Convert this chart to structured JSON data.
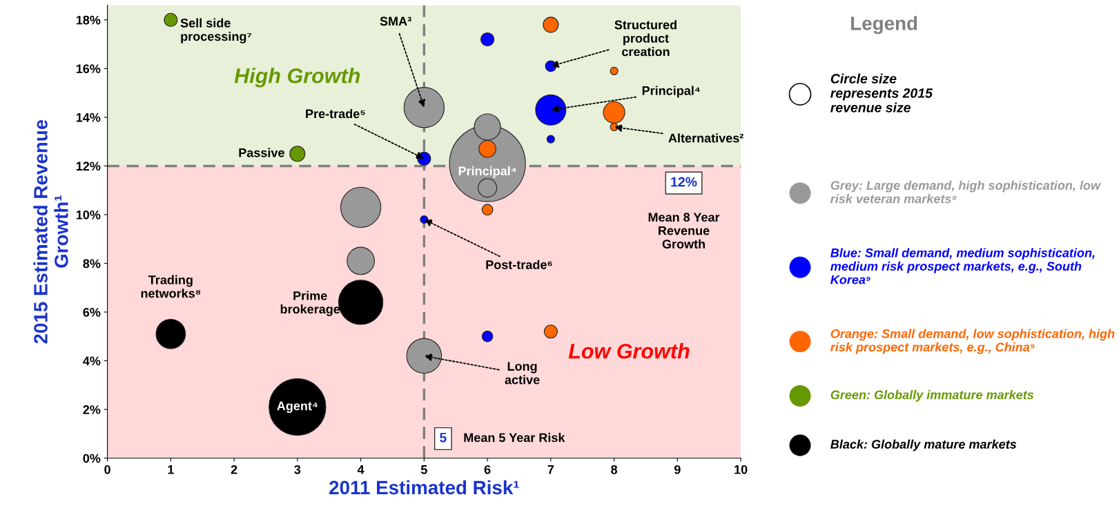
{
  "chart_data": {
    "type": "bubble",
    "xlabel": "2011 Estimated Risk¹",
    "ylabel": "2015 Estimated Revenue\nGrowth¹",
    "xlim": [
      0,
      10
    ],
    "xticks": [
      0,
      1,
      2,
      3,
      4,
      5,
      6,
      7,
      8,
      9,
      10
    ],
    "ylim": [
      0,
      18.6
    ],
    "yticks": [
      {
        "value": 0,
        "label": "0%"
      },
      {
        "value": 2,
        "label": "2%"
      },
      {
        "value": 4,
        "label": "4%"
      },
      {
        "value": 6,
        "label": "6%"
      },
      {
        "value": 8,
        "label": "8%"
      },
      {
        "value": 10,
        "label": "10%"
      },
      {
        "value": 12,
        "label": "12%"
      },
      {
        "value": 14,
        "label": "14%"
      },
      {
        "value": 16,
        "label": "16%"
      },
      {
        "value": 18,
        "label": "18%"
      }
    ],
    "legend": "right",
    "legend_title": "Legend",
    "series": [
      {
        "name": "Grey: Large demand, high sophistication, low risk veteran markets⁹",
        "color": "#999999",
        "x": [
          6,
          5,
          4,
          5,
          4,
          6,
          6
        ],
        "values": [
          12.1,
          14.4,
          10.3,
          4.2,
          8.1,
          13.6,
          11.1
        ],
        "sizes": [
          1,
          0.28,
          0.28,
          0.21,
          0.13,
          0.12,
          0.06
        ]
      },
      {
        "name": "Blue: Small demand, medium sophistication, medium risk prospect markets, e.g., South Korea⁹",
        "color": "#0000ff",
        "x": [
          6,
          7,
          7,
          7,
          5,
          5,
          6
        ],
        "values": [
          17.2,
          16.1,
          14.3,
          13.1,
          12.3,
          9.8,
          5.0
        ],
        "sizes": [
          0.03,
          0.02,
          0.16,
          0.01,
          0.03,
          0.01,
          0.02
        ]
      },
      {
        "name": "Orange: Small demand, low sophistication, high risk prospect markets, e.g., China⁹",
        "color": "#ff6600",
        "x": [
          7,
          8,
          8,
          8,
          6,
          6,
          7
        ],
        "values": [
          17.8,
          15.9,
          14.2,
          13.6,
          12.7,
          10.2,
          5.2
        ],
        "sizes": [
          0.04,
          0.01,
          0.08,
          0.01,
          0.05,
          0.02,
          0.03
        ]
      },
      {
        "name": "Green: Globally immature markets",
        "color": "#669900",
        "x": [
          1,
          3
        ],
        "values": [
          18.0,
          12.5
        ],
        "sizes": [
          0.03,
          0.04
        ]
      },
      {
        "name": "Black: Globally mature markets",
        "color": "#000000",
        "x": [
          3,
          4,
          1
        ],
        "values": [
          2.1,
          6.4,
          5.1
        ],
        "sizes": [
          0.56,
          0.34,
          0.15
        ]
      }
    ],
    "bands": [
      {
        "axis": "y",
        "from": 12,
        "to": 18.6,
        "label": "High Growth",
        "color": "#669900"
      },
      {
        "axis": "y",
        "from": 0,
        "to": 12,
        "label": "Low Growth",
        "color": "#ff0000"
      }
    ],
    "ref_lines": [
      {
        "axis": "y",
        "value": 12,
        "label": "12%",
        "color": "#808080",
        "line_style": "dashed"
      },
      {
        "axis": "x",
        "value": 5,
        "label": "5",
        "color": "#808080",
        "line_style": "dashed"
      }
    ],
    "annotations": [
      {
        "text": "Sell side\nprocessing⁷",
        "x": 1,
        "y": 18.0
      },
      {
        "text": "SMA³",
        "x": 5,
        "y": 14.4
      },
      {
        "text": "Structured\nproduct\ncreation",
        "x": 7,
        "y": 16.1
      },
      {
        "text": "Principal⁴",
        "x": 7,
        "y": 14.3
      },
      {
        "text": "Alternatives²",
        "x": 8,
        "y": 13.6
      },
      {
        "text": "Pre-trade⁵",
        "x": 5,
        "y": 12.3
      },
      {
        "text": "Passive",
        "x": 3,
        "y": 12.5
      },
      {
        "text": "Principal⁴",
        "x": 6,
        "y": 12.1
      },
      {
        "text": "Post-trade⁶",
        "x": 5,
        "y": 9.8
      },
      {
        "text": "Trading\nnetworks⁸",
        "x": 1,
        "y": 5.1
      },
      {
        "text": "Prime\nbrokerage",
        "x": 4,
        "y": 6.4
      },
      {
        "text": "Long\nactive",
        "x": 5,
        "y": 4.2
      },
      {
        "text": "Agent⁴",
        "x": 3,
        "y": 2.1
      },
      "Mean 8 Year\nRevenue\nGrowth",
      "Mean 5 Year Risk",
      "Circle size\nrepresents 2015\nrevenue size"
    ]
  }
}
